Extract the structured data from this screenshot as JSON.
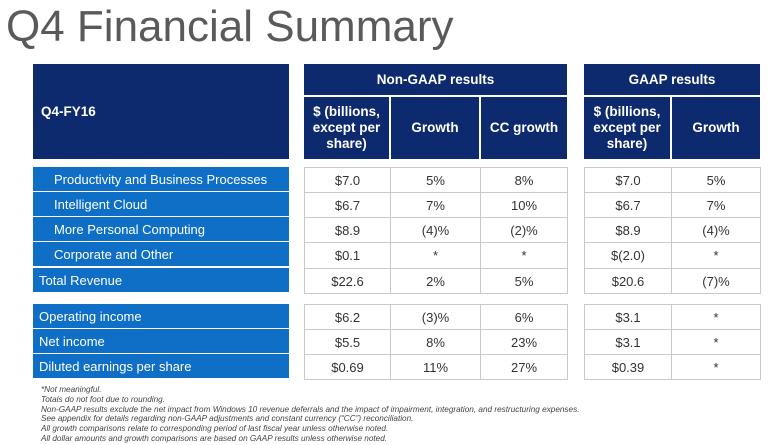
{
  "title": "Q4 Financial Summary",
  "period_label": "Q4-FY16",
  "nongaap_header": "Non-GAAP results",
  "gaap_header": "GAAP results",
  "columns": {
    "dollars": "$ (billions, except per share)",
    "growth": "Growth",
    "cc_growth": "CC growth"
  },
  "segment_rows": [
    {
      "label": "Productivity and Business Processes",
      "ng_value": "$7.0",
      "ng_growth": "5%",
      "ng_cc": "8%",
      "g_value": "$7.0",
      "g_growth": "5%"
    },
    {
      "label": "Intelligent Cloud",
      "ng_value": "$6.7",
      "ng_growth": "7%",
      "ng_cc": "10%",
      "g_value": "$6.7",
      "g_growth": "7%"
    },
    {
      "label": "More Personal Computing",
      "ng_value": "$8.9",
      "ng_growth": "(4)%",
      "ng_cc": "(2)%",
      "g_value": "$8.9",
      "g_growth": "(4)%"
    },
    {
      "label": "Corporate and Other",
      "ng_value": "$0.1",
      "ng_growth": "*",
      "ng_cc": "*",
      "g_value": "$(2.0)",
      "g_growth": "*"
    },
    {
      "label": "Total Revenue",
      "ng_value": "$22.6",
      "ng_growth": "2%",
      "ng_cc": "5%",
      "g_value": "$20.6",
      "g_growth": "(7)%"
    }
  ],
  "income_rows": [
    {
      "label": "Operating income",
      "ng_value": "$6.2",
      "ng_growth": "(3)%",
      "ng_cc": "6%",
      "g_value": "$3.1",
      "g_growth": "*"
    },
    {
      "label": "Net income",
      "ng_value": "$5.5",
      "ng_growth": "8%",
      "ng_cc": "23%",
      "g_value": "$3.1",
      "g_growth": "*"
    },
    {
      "label": "Diluted earnings per share",
      "ng_value": "$0.69",
      "ng_growth": "11%",
      "ng_cc": "27%",
      "g_value": "$0.39",
      "g_growth": "*"
    }
  ],
  "footnotes": [
    "*Not meaningful.",
    "Totals do not foot due to rounding.",
    "Non-GAAP results exclude the net impact from Windows 10 revenue deferrals and the impact of impairment, integration, and restructuring expenses.",
    "See appendix for details regarding non-GAAP adjustments and constant currency (“CC”) reconciliation.",
    "All growth comparisons relate to corresponding period of last fiscal year unless otherwise noted.",
    "All dollar amounts and growth comparisons are based on GAAP results unless otherwise noted."
  ]
}
